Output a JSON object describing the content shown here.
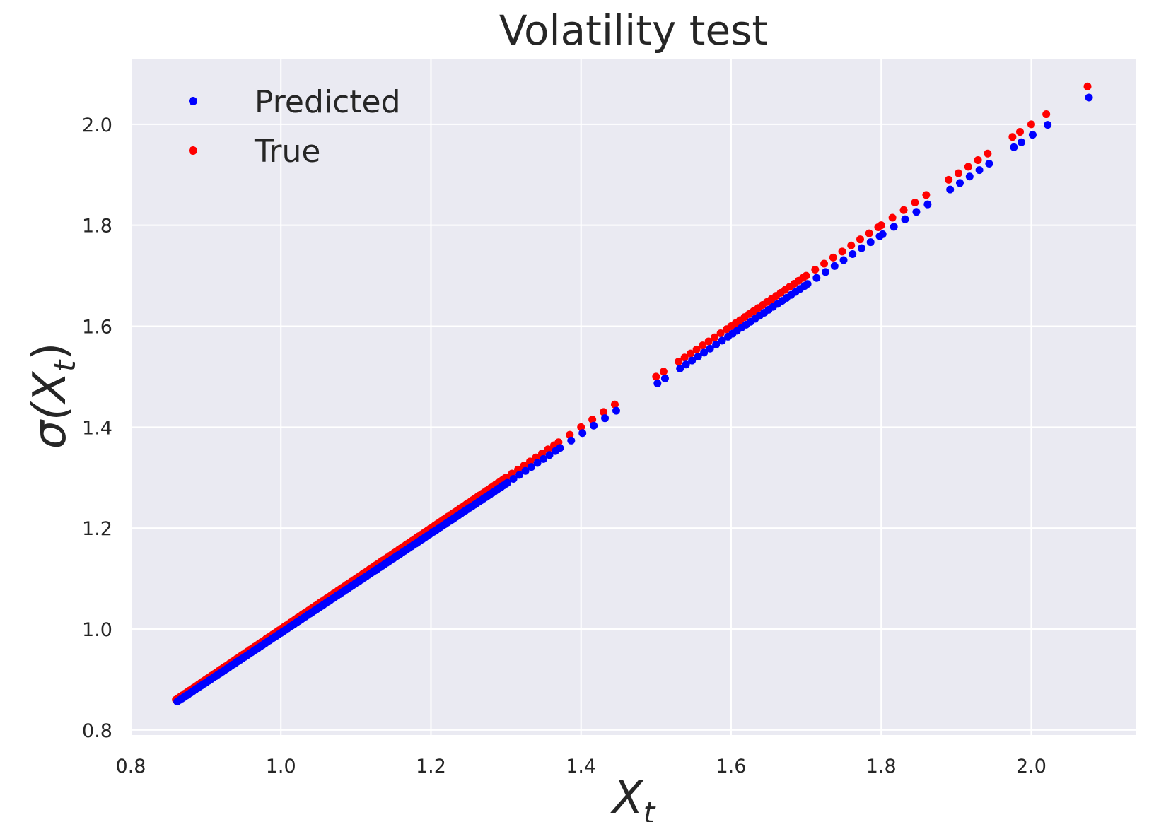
{
  "chart_data": {
    "type": "scatter",
    "title": "Volatility test",
    "xlabel": {
      "base": "X",
      "sub": "t"
    },
    "ylabel": {
      "prefix": "σ(",
      "base": "X",
      "sub": "t",
      "suffix": ")"
    },
    "xlim": [
      0.8,
      2.14
    ],
    "ylim": [
      0.79,
      2.13
    ],
    "xticks": [
      0.8,
      1.0,
      1.2,
      1.4,
      1.6,
      1.8,
      2.0
    ],
    "xtick_labels": [
      "0.8",
      "1.0",
      "1.2",
      "1.4",
      "1.6",
      "1.8",
      "2.0"
    ],
    "yticks": [
      0.8,
      1.0,
      1.2,
      1.4,
      1.6,
      1.8,
      2.0
    ],
    "ytick_labels": [
      "0.8",
      "1.0",
      "1.2",
      "1.4",
      "1.6",
      "1.8",
      "2.0"
    ],
    "grid": true,
    "legend": {
      "position": "top-left",
      "entries": [
        {
          "name": "Predicted",
          "color": "#0000ff"
        },
        {
          "name": "True",
          "color": "#ff0000"
        }
      ]
    },
    "x_ranges": [
      {
        "from": 0.86,
        "to": 1.3,
        "step": 0.003
      },
      {
        "from": 1.3,
        "to": 1.37,
        "step": 0.008
      },
      {
        "from": 1.37,
        "to": 1.45,
        "step": 0.015
      },
      {
        "from": 1.5,
        "to": 1.51,
        "step": 0.01
      },
      {
        "from": 1.53,
        "to": 1.6,
        "step": 0.008
      },
      {
        "from": 1.6,
        "to": 1.7,
        "step": 0.006
      },
      {
        "from": 1.7,
        "to": 1.8,
        "step": 0.012
      },
      {
        "from": 1.8,
        "to": 1.86,
        "step": 0.015
      },
      {
        "from": 1.89,
        "to": 1.945,
        "step": 0.013
      }
    ],
    "x_extra": [
      1.975,
      1.985,
      2.0,
      2.02,
      2.075
    ],
    "series": [
      {
        "name": "Predicted",
        "color": "#0000ff",
        "relation": "y = 0.985 * x + 0.012"
      },
      {
        "name": "True",
        "color": "#ff0000",
        "relation": "y = x"
      }
    ]
  },
  "colors": {
    "plot_background": "#eaeaf2",
    "grid": "#ffffff",
    "text": "#262626"
  }
}
